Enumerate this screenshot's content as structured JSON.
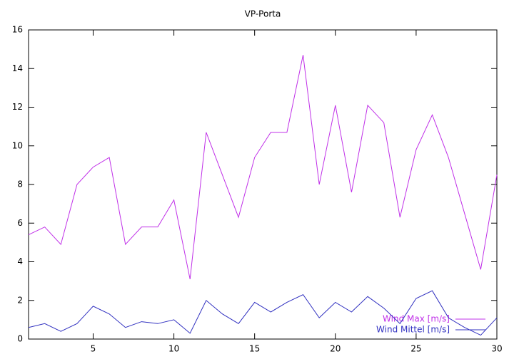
{
  "chart_data": {
    "type": "line",
    "title": "VP-Porta",
    "x": [
      1,
      2,
      3,
      4,
      5,
      6,
      7,
      8,
      9,
      10,
      11,
      12,
      13,
      14,
      15,
      16,
      17,
      18,
      19,
      20,
      21,
      22,
      23,
      24,
      25,
      26,
      27,
      28,
      29,
      30
    ],
    "series": [
      {
        "name": "Wind Max [m/s]",
        "color": "#c030e8",
        "values": [
          5.4,
          5.8,
          4.9,
          8.0,
          8.9,
          9.4,
          4.9,
          5.8,
          5.8,
          7.2,
          3.1,
          10.7,
          8.5,
          6.3,
          9.4,
          10.7,
          10.7,
          14.7,
          8.0,
          12.1,
          7.6,
          12.1,
          11.2,
          6.3,
          9.8,
          11.6,
          9.4,
          6.5,
          3.6,
          8.5
        ]
      },
      {
        "name": "Wind Mittel [m/s]",
        "color": "#3030c0",
        "values": [
          0.6,
          0.8,
          0.4,
          0.8,
          1.7,
          1.3,
          0.6,
          0.9,
          0.8,
          1.0,
          0.3,
          2.0,
          1.3,
          0.8,
          1.9,
          1.4,
          1.9,
          2.3,
          1.1,
          1.9,
          1.4,
          2.2,
          1.6,
          0.8,
          2.1,
          2.5,
          1.1,
          0.6,
          0.2,
          1.1
        ]
      }
    ],
    "xlim": [
      1,
      30
    ],
    "xticks": [
      5,
      10,
      15,
      20,
      25,
      30
    ],
    "ylim": [
      0,
      16
    ],
    "yticks": [
      0,
      2,
      4,
      6,
      8,
      10,
      12,
      14,
      16
    ],
    "legend": "bottom-right"
  }
}
